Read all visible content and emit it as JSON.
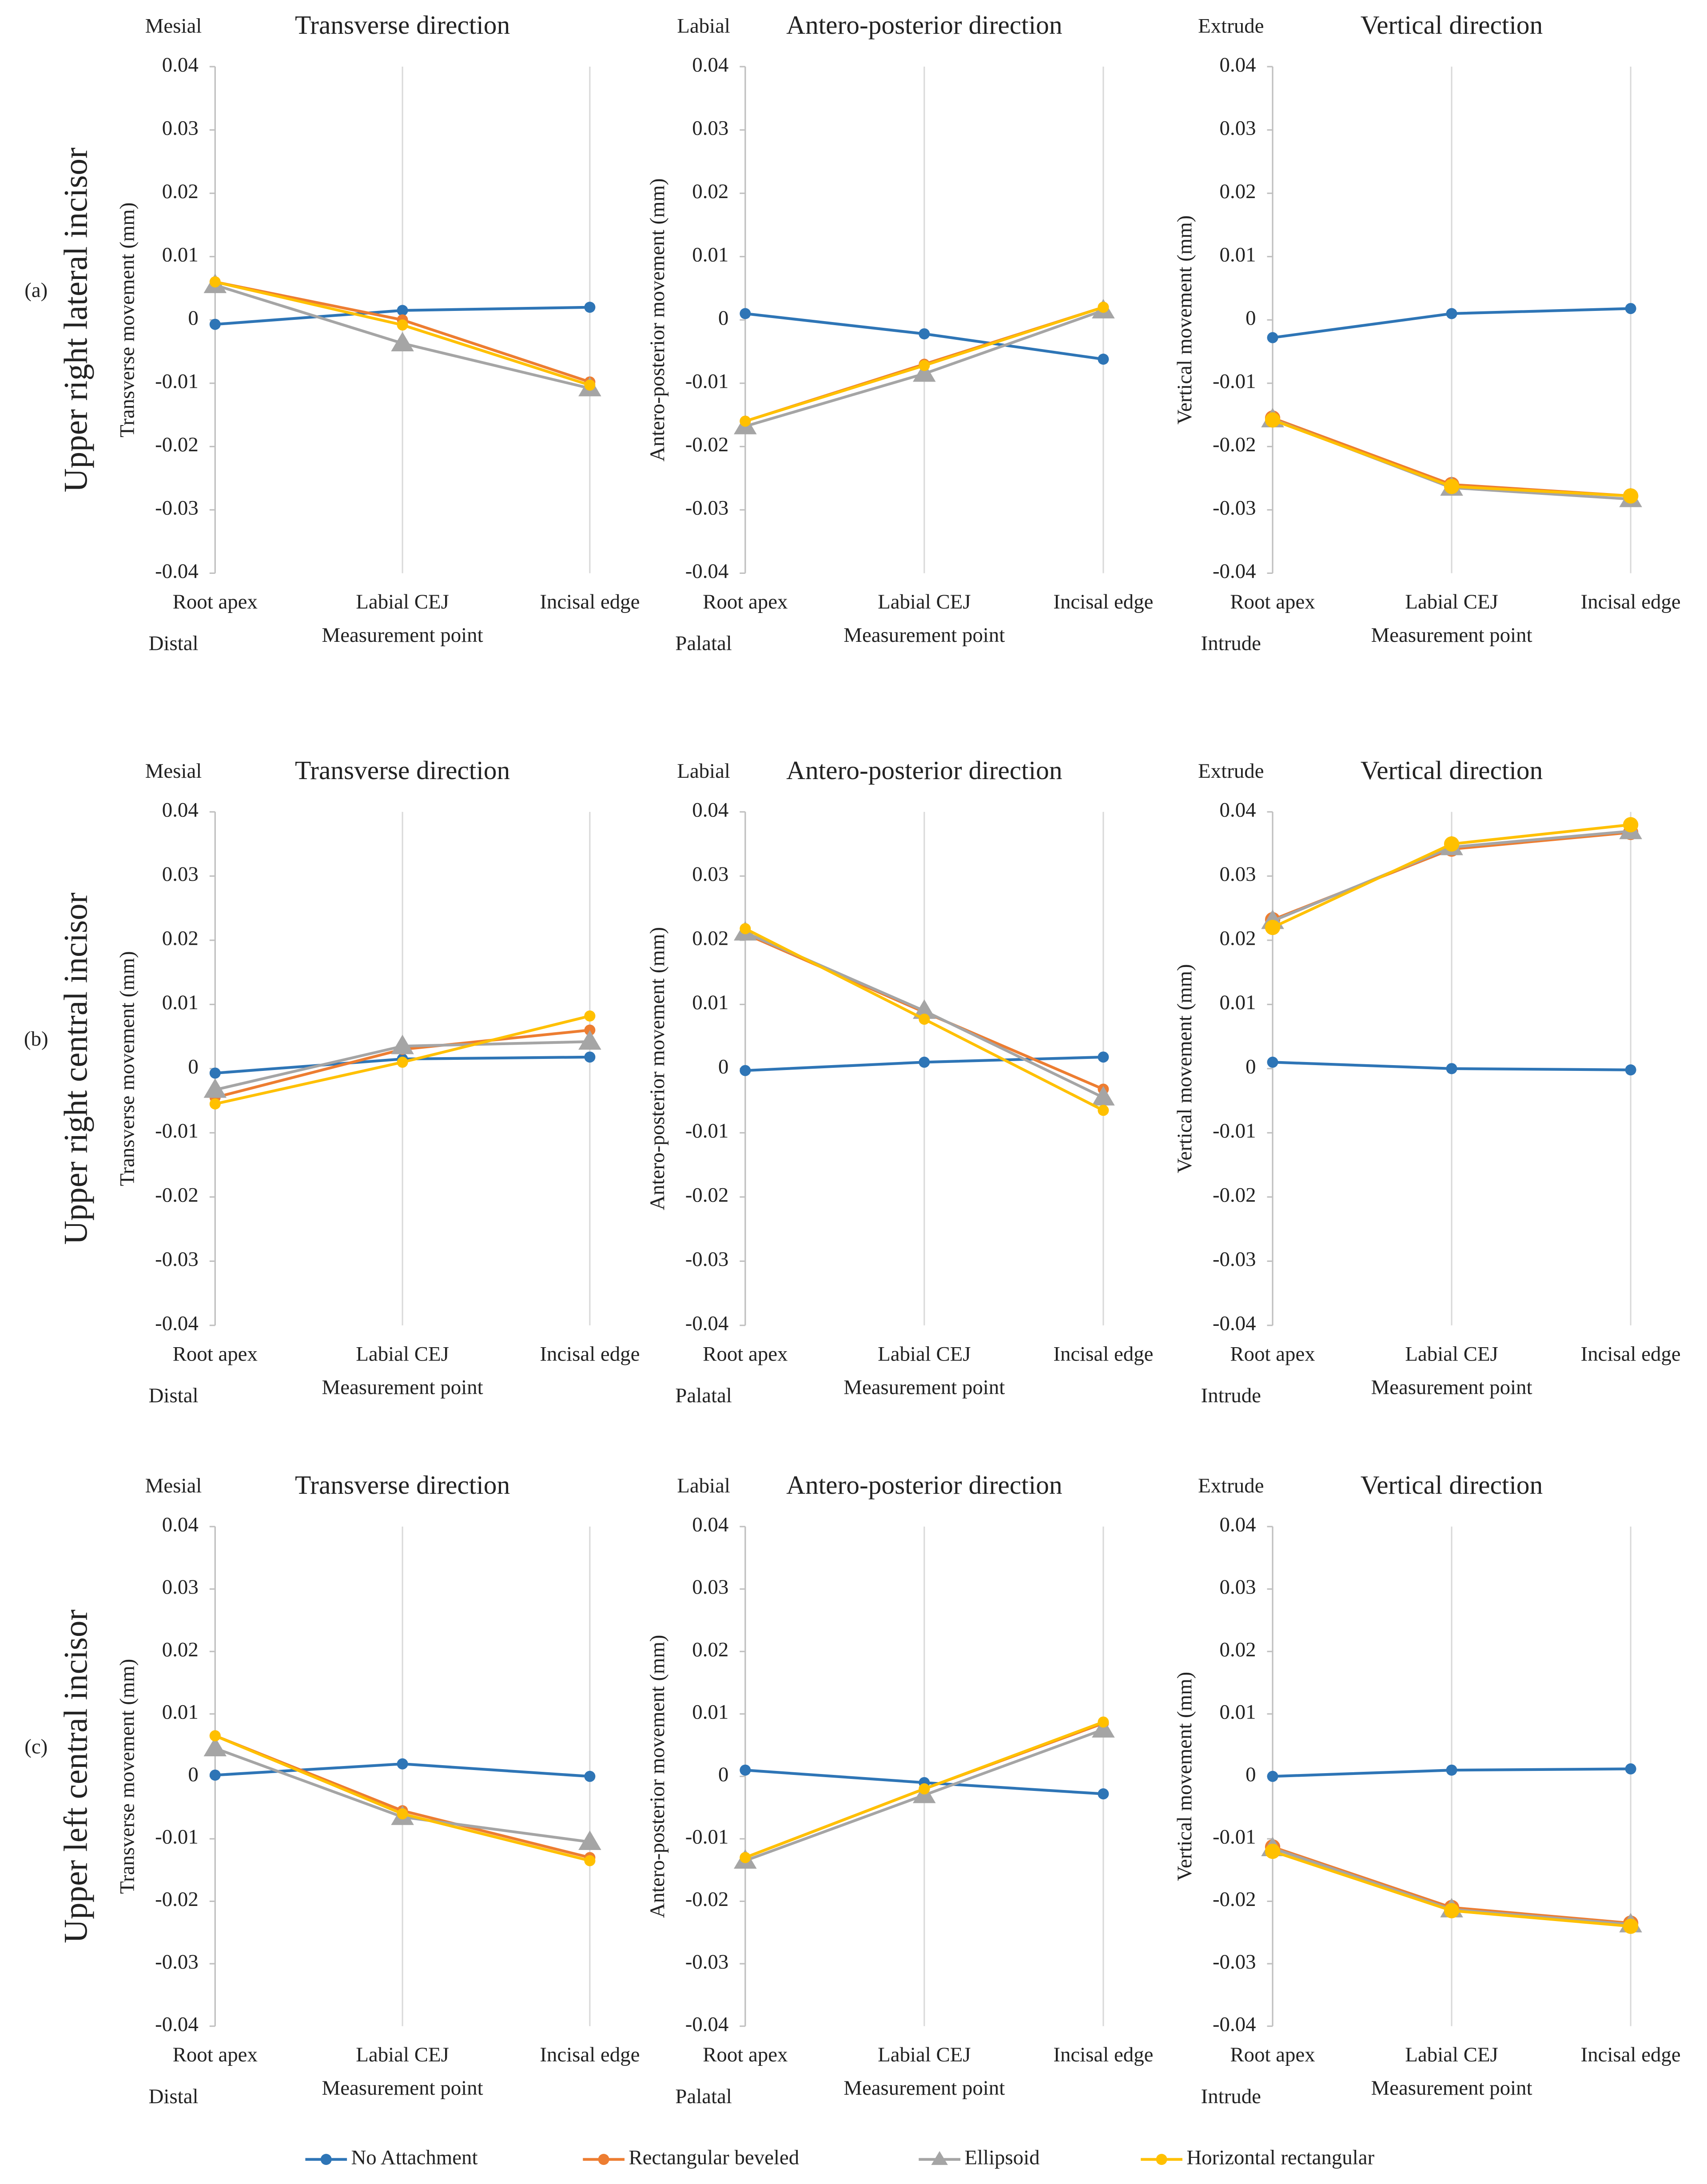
{
  "rows": [
    {
      "tag": "(a)",
      "name": "Upper right lateral incisor"
    },
    {
      "tag": "(b)",
      "name": "Upper right central incisor"
    },
    {
      "tag": "(c)",
      "name": "Upper left central incisor"
    }
  ],
  "chart_data": [
    {
      "type": "line",
      "title": "Transverse direction",
      "y_label": "Transverse movement (mm)",
      "x_label": "Measurement point",
      "top_label": "Mesial",
      "bottom_label": "Distal",
      "categories": [
        "Root apex",
        "Labial CEJ",
        "Incisal edge"
      ],
      "ylim": [
        -0.04,
        0.04
      ],
      "yticks": [
        -0.04,
        -0.03,
        -0.02,
        -0.01,
        0,
        0.01,
        0.02,
        0.03,
        0.04
      ],
      "grid": "x",
      "series": [
        {
          "name": "No Attachment",
          "color": "#2e75b6",
          "marker": "circle",
          "values": [
            -0.0007,
            0.0015,
            0.002
          ]
        },
        {
          "name": "Rectangular beveled",
          "color": "#ed7d31",
          "marker": "circle",
          "values": [
            0.006,
            0,
            -0.0098
          ]
        },
        {
          "name": "Ellipsoid",
          "color": "#a5a5a5",
          "marker": "triangle",
          "values": [
            0.0055,
            -0.0037,
            -0.0108
          ]
        },
        {
          "name": "Horizontal rectangular",
          "color": "#ffc000",
          "marker": "circle",
          "values": [
            0.006,
            -0.0008,
            -0.0103
          ]
        }
      ]
    },
    {
      "type": "line",
      "title": "Antero-posterior direction",
      "y_label": "Antero-posterior movement (mm)",
      "x_label": "Measurement point",
      "top_label": "Labial",
      "bottom_label": "Palatal",
      "categories": [
        "Root apex",
        "Labial CEJ",
        "Incisal edge"
      ],
      "ylim": [
        -0.04,
        0.04
      ],
      "yticks": [
        -0.04,
        -0.03,
        -0.02,
        -0.01,
        0,
        0.01,
        0.02,
        0.03,
        0.04
      ],
      "grid": "x",
      "series": [
        {
          "name": "No Attachment",
          "color": "#2e75b6",
          "marker": "circle",
          "values": [
            0.001,
            -0.0022,
            -0.0062
          ]
        },
        {
          "name": "Rectangular beveled",
          "color": "#ed7d31",
          "marker": "circle",
          "values": [
            -0.016,
            -0.007,
            0.002
          ]
        },
        {
          "name": "Ellipsoid",
          "color": "#a5a5a5",
          "marker": "triangle",
          "values": [
            -0.0168,
            -0.0085,
            0.0015
          ]
        },
        {
          "name": "Horizontal rectangular",
          "color": "#ffc000",
          "marker": "circle",
          "values": [
            -0.016,
            -0.0072,
            0.002
          ]
        }
      ]
    },
    {
      "type": "line",
      "title": "Vertical direction",
      "y_label": "Vertical movement (mm)",
      "x_label": "Measurement point",
      "top_label": "Extrude",
      "bottom_label": "Intrude",
      "categories": [
        "Root apex",
        "Labial CEJ",
        "Incisal edge"
      ],
      "ylim": [
        -0.04,
        0.04
      ],
      "yticks": [
        -0.04,
        -0.03,
        -0.02,
        -0.01,
        0,
        0.01,
        0.02,
        0.03,
        0.04
      ],
      "grid": "x",
      "series": [
        {
          "name": "No Attachment",
          "color": "#2e75b6",
          "marker": "circle",
          "values": [
            -0.0028,
            0.001,
            0.0018
          ]
        },
        {
          "name": "Rectangular beveled",
          "color": "#ed7d31",
          "marker": "circle",
          "values": [
            -0.0155,
            -0.026,
            -0.0278
          ]
        },
        {
          "name": "Ellipsoid",
          "color": "#a5a5a5",
          "marker": "triangle",
          "values": [
            -0.0157,
            -0.0265,
            -0.0283
          ]
        },
        {
          "name": "Horizontal rectangular",
          "color": "#ffc000",
          "marker": "circle",
          "values": [
            -0.0158,
            -0.0263,
            -0.0278
          ]
        }
      ]
    },
    {
      "type": "line",
      "title": "Transverse direction",
      "y_label": "Transverse movement (mm)",
      "x_label": "Measurement point",
      "top_label": "Mesial",
      "bottom_label": "Distal",
      "categories": [
        "Root apex",
        "Labial CEJ",
        "Incisal edge"
      ],
      "ylim": [
        -0.04,
        0.04
      ],
      "yticks": [
        -0.04,
        -0.03,
        -0.02,
        -0.01,
        0,
        0.01,
        0.02,
        0.03,
        0.04
      ],
      "grid": "x",
      "series": [
        {
          "name": "No Attachment",
          "color": "#2e75b6",
          "marker": "circle",
          "values": [
            -0.0007,
            0.0015,
            0.0018
          ]
        },
        {
          "name": "Rectangular beveled",
          "color": "#ed7d31",
          "marker": "circle",
          "values": [
            -0.0045,
            0.003,
            0.006
          ]
        },
        {
          "name": "Ellipsoid",
          "color": "#a5a5a5",
          "marker": "triangle",
          "values": [
            -0.0033,
            0.0035,
            0.0042
          ]
        },
        {
          "name": "Horizontal rectangular",
          "color": "#ffc000",
          "marker": "circle",
          "values": [
            -0.0055,
            0.001,
            0.0082
          ]
        }
      ]
    },
    {
      "type": "line",
      "title": "Antero-posterior direction",
      "y_label": "Antero-posterior movement (mm)",
      "x_label": "Measurement point",
      "top_label": "Labial",
      "bottom_label": "Palatal",
      "categories": [
        "Root apex",
        "Labial CEJ",
        "Incisal edge"
      ],
      "ylim": [
        -0.04,
        0.04
      ],
      "yticks": [
        -0.04,
        -0.03,
        -0.02,
        -0.01,
        0,
        0.01,
        0.02,
        0.03,
        0.04
      ],
      "grid": "x",
      "series": [
        {
          "name": "No Attachment",
          "color": "#2e75b6",
          "marker": "circle",
          "values": [
            -0.0003,
            0.001,
            0.0018
          ]
        },
        {
          "name": "Rectangular beveled",
          "color": "#ed7d31",
          "marker": "circle",
          "values": [
            0.021,
            0.0088,
            -0.0032
          ]
        },
        {
          "name": "Ellipsoid",
          "color": "#a5a5a5",
          "marker": "triangle",
          "values": [
            0.0212,
            0.009,
            -0.0045
          ]
        },
        {
          "name": "Horizontal rectangular",
          "color": "#ffc000",
          "marker": "circle",
          "values": [
            0.0218,
            0.0077,
            -0.0065
          ]
        }
      ]
    },
    {
      "type": "line",
      "title": "Vertical direction",
      "y_label": "Vertical movement (mm)",
      "x_label": "Measurement point",
      "top_label": "Extrude",
      "bottom_label": "Intrude",
      "categories": [
        "Root apex",
        "Labial CEJ",
        "Incisal edge"
      ],
      "ylim": [
        -0.04,
        0.04
      ],
      "yticks": [
        -0.04,
        -0.03,
        -0.02,
        -0.01,
        0,
        0.01,
        0.02,
        0.03,
        0.04
      ],
      "grid": "x",
      "series": [
        {
          "name": "No Attachment",
          "color": "#2e75b6",
          "marker": "circle",
          "values": [
            0.001,
            0,
            -0.0002
          ]
        },
        {
          "name": "Rectangular beveled",
          "color": "#ed7d31",
          "marker": "circle",
          "values": [
            0.0232,
            0.0342,
            0.0368
          ]
        },
        {
          "name": "Ellipsoid",
          "color": "#a5a5a5",
          "marker": "triangle",
          "values": [
            0.023,
            0.0345,
            0.037
          ]
        },
        {
          "name": "Horizontal rectangular",
          "color": "#ffc000",
          "marker": "circle",
          "values": [
            0.022,
            0.035,
            0.038
          ]
        }
      ]
    },
    {
      "type": "line",
      "title": "Transverse direction",
      "y_label": "Transverse movement (mm)",
      "x_label": "Measurement point",
      "top_label": "Mesial",
      "bottom_label": "Distal",
      "categories": [
        "Root apex",
        "Labial CEJ",
        "Incisal edge"
      ],
      "ylim": [
        -0.04,
        0.04
      ],
      "yticks": [
        -0.04,
        -0.03,
        -0.02,
        -0.01,
        0,
        0.01,
        0.02,
        0.03,
        0.04
      ],
      "grid": "x",
      "series": [
        {
          "name": "No Attachment",
          "color": "#2e75b6",
          "marker": "circle",
          "values": [
            0.0002,
            0.002,
            0
          ]
        },
        {
          "name": "Rectangular beveled",
          "color": "#ed7d31",
          "marker": "circle",
          "values": [
            0.0065,
            -0.0055,
            -0.013
          ]
        },
        {
          "name": "Ellipsoid",
          "color": "#a5a5a5",
          "marker": "triangle",
          "values": [
            0.0045,
            -0.0065,
            -0.0105
          ]
        },
        {
          "name": "Horizontal rectangular",
          "color": "#ffc000",
          "marker": "circle",
          "values": [
            0.0065,
            -0.006,
            -0.0135
          ]
        }
      ]
    },
    {
      "type": "line",
      "title": "Antero-posterior direction",
      "y_label": "Antero-posterior movement (mm)",
      "x_label": "Measurement point",
      "top_label": "Labial",
      "bottom_label": "Palatal",
      "categories": [
        "Root apex",
        "Labial CEJ",
        "Incisal edge"
      ],
      "ylim": [
        -0.04,
        0.04
      ],
      "yticks": [
        -0.04,
        -0.03,
        -0.02,
        -0.01,
        0,
        0.01,
        0.02,
        0.03,
        0.04
      ],
      "grid": "x",
      "series": [
        {
          "name": "No Attachment",
          "color": "#2e75b6",
          "marker": "circle",
          "values": [
            0.001,
            -0.001,
            -0.0028
          ]
        },
        {
          "name": "Rectangular beveled",
          "color": "#ed7d31",
          "marker": "circle",
          "values": [
            -0.013,
            -0.002,
            0.0085
          ]
        },
        {
          "name": "Ellipsoid",
          "color": "#a5a5a5",
          "marker": "triangle",
          "values": [
            -0.0135,
            -0.003,
            0.0075
          ]
        },
        {
          "name": "Horizontal rectangular",
          "color": "#ffc000",
          "marker": "circle",
          "values": [
            -0.013,
            -0.002,
            0.0087
          ]
        }
      ]
    },
    {
      "type": "line",
      "title": "Vertical direction",
      "y_label": "Vertical movement (mm)",
      "x_label": "Measurement point",
      "top_label": "Extrude",
      "bottom_label": "Intrude",
      "categories": [
        "Root apex",
        "Labial CEJ",
        "Incisal edge"
      ],
      "ylim": [
        -0.04,
        0.04
      ],
      "yticks": [
        -0.04,
        -0.03,
        -0.02,
        -0.01,
        0,
        0.01,
        0.02,
        0.03,
        0.04
      ],
      "grid": "x",
      "series": [
        {
          "name": "No Attachment",
          "color": "#2e75b6",
          "marker": "circle",
          "values": [
            0,
            0.001,
            0.0012
          ]
        },
        {
          "name": "Rectangular beveled",
          "color": "#ed7d31",
          "marker": "circle",
          "values": [
            -0.0113,
            -0.021,
            -0.0235
          ]
        },
        {
          "name": "Ellipsoid",
          "color": "#a5a5a5",
          "marker": "triangle",
          "values": [
            -0.0115,
            -0.0213,
            -0.0237
          ]
        },
        {
          "name": "Horizontal rectangular",
          "color": "#ffc000",
          "marker": "circle",
          "values": [
            -0.012,
            -0.0215,
            -0.024
          ]
        }
      ]
    }
  ]
}
